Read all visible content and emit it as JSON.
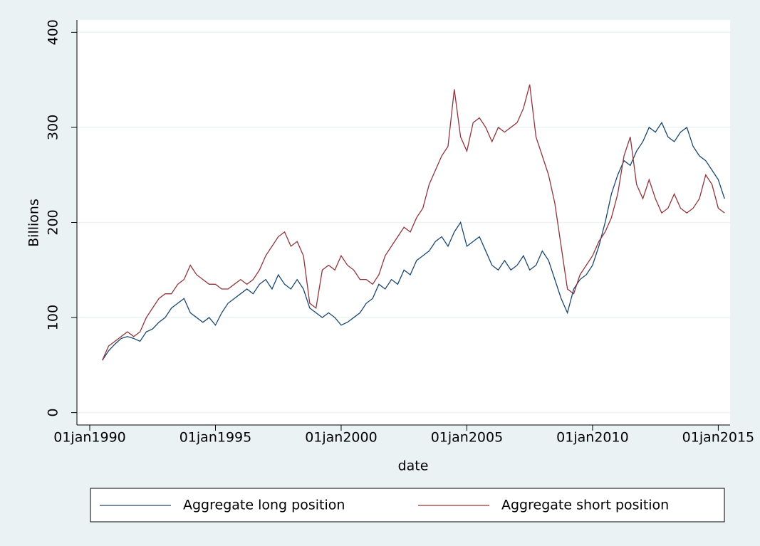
{
  "chart_data": {
    "type": "line",
    "y_label": "Billions",
    "x_label": "date",
    "x": [
      1990.5,
      1990.75,
      1991,
      1991.25,
      1991.5,
      1991.75,
      1992,
      1992.25,
      1992.5,
      1992.75,
      1993,
      1993.25,
      1993.5,
      1993.75,
      1994,
      1994.25,
      1994.5,
      1994.75,
      1995,
      1995.25,
      1995.5,
      1995.75,
      1996,
      1996.25,
      1996.5,
      1996.75,
      1997,
      1997.25,
      1997.5,
      1997.75,
      1998,
      1998.25,
      1998.5,
      1998.75,
      1999,
      1999.25,
      1999.5,
      1999.75,
      2000,
      2000.25,
      2000.5,
      2000.75,
      2001,
      2001.25,
      2001.5,
      2001.75,
      2002,
      2002.25,
      2002.5,
      2002.75,
      2003,
      2003.25,
      2003.5,
      2003.75,
      2004,
      2004.25,
      2004.5,
      2004.75,
      2005,
      2005.25,
      2005.5,
      2005.75,
      2006,
      2006.25,
      2006.5,
      2006.75,
      2007,
      2007.25,
      2007.5,
      2007.75,
      2008,
      2008.25,
      2008.5,
      2008.75,
      2009,
      2009.25,
      2009.5,
      2009.75,
      2010,
      2010.25,
      2010.5,
      2010.75,
      2011,
      2011.25,
      2011.5,
      2011.75,
      2012,
      2012.25,
      2012.5,
      2012.75,
      2013,
      2013.25,
      2013.5,
      2013.75,
      2014,
      2014.25,
      2014.5,
      2014.75,
      2015,
      2015.25
    ],
    "series": [
      {
        "name": "Aggregate long position",
        "color": "#1a476f",
        "values": [
          55,
          65,
          72,
          78,
          80,
          78,
          75,
          85,
          88,
          95,
          100,
          110,
          115,
          120,
          105,
          100,
          95,
          100,
          92,
          105,
          115,
          120,
          125,
          130,
          125,
          135,
          140,
          130,
          145,
          135,
          130,
          140,
          130,
          110,
          105,
          100,
          105,
          100,
          92,
          95,
          100,
          105,
          115,
          120,
          135,
          130,
          140,
          135,
          150,
          145,
          160,
          165,
          170,
          180,
          185,
          175,
          190,
          200,
          175,
          180,
          185,
          170,
          155,
          150,
          160,
          150,
          155,
          165,
          150,
          155,
          170,
          160,
          140,
          120,
          105,
          130,
          140,
          145,
          155,
          175,
          200,
          230,
          250,
          265,
          260,
          275,
          285,
          300,
          295,
          305,
          290,
          285,
          295,
          300,
          280,
          270,
          265,
          255,
          245,
          225
        ]
      },
      {
        "name": "Aggregate short position",
        "color": "#90353b",
        "values": [
          55,
          70,
          75,
          80,
          85,
          80,
          85,
          100,
          110,
          120,
          125,
          125,
          135,
          140,
          155,
          145,
          140,
          135,
          135,
          130,
          130,
          135,
          140,
          135,
          140,
          150,
          165,
          175,
          185,
          190,
          175,
          180,
          165,
          115,
          110,
          150,
          155,
          150,
          165,
          155,
          150,
          140,
          140,
          135,
          145,
          165,
          175,
          185,
          195,
          190,
          205,
          215,
          240,
          255,
          270,
          280,
          340,
          290,
          275,
          305,
          310,
          300,
          285,
          300,
          295,
          300,
          305,
          320,
          345,
          290,
          270,
          250,
          220,
          175,
          130,
          125,
          145,
          155,
          165,
          180,
          190,
          205,
          230,
          270,
          290,
          240,
          225,
          245,
          225,
          210,
          215,
          230,
          215,
          210,
          215,
          225,
          250,
          240,
          215,
          210
        ]
      }
    ],
    "xlim": [
      1989.49,
      2015.47
    ],
    "xticks": [
      {
        "value": 1990,
        "label": "01jan1990"
      },
      {
        "value": 1995,
        "label": "01jan1995"
      },
      {
        "value": 2000,
        "label": "01jan2000"
      },
      {
        "value": 2005,
        "label": "01jan2005"
      },
      {
        "value": 2010,
        "label": "01jan2010"
      },
      {
        "value": 2015,
        "label": "01jan2015"
      }
    ],
    "ylim": [
      -13,
      413
    ],
    "yticks": [
      0,
      100,
      200,
      300,
      400
    ],
    "grid": true,
    "legend": "bottom"
  }
}
